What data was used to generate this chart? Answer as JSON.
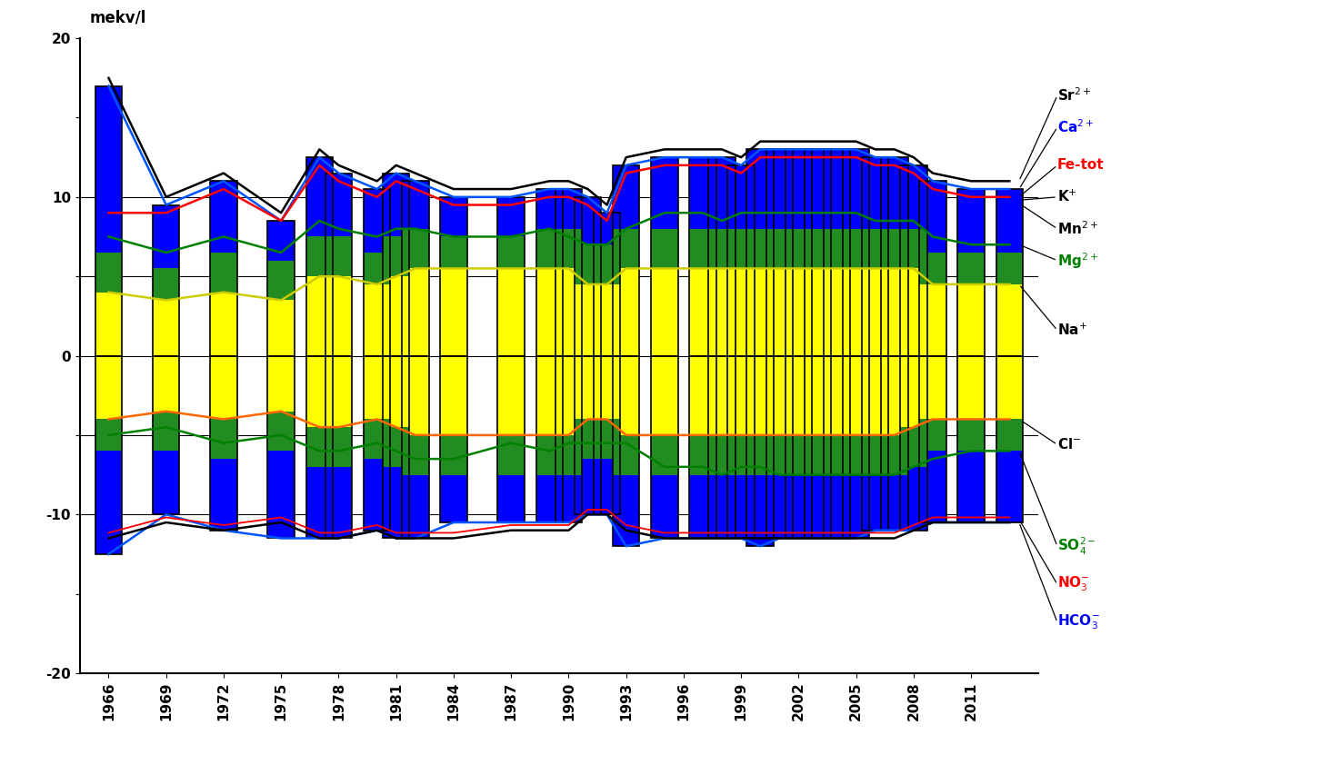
{
  "title_ylabel": "mekv/l",
  "ylim": [
    -20,
    20
  ],
  "xlim": [
    1964.5,
    2014.5
  ],
  "xticks": [
    1966,
    1969,
    1972,
    1975,
    1978,
    1981,
    1984,
    1987,
    1990,
    1993,
    1996,
    1999,
    2002,
    2005,
    2008,
    2011
  ],
  "yticks": [
    -20,
    -15,
    -10,
    -5,
    0,
    5,
    10,
    15,
    20
  ],
  "years": [
    1966,
    1969,
    1972,
    1975,
    1977,
    1978,
    1980,
    1981,
    1982,
    1984,
    1987,
    1989,
    1990,
    1991,
    1992,
    1993,
    1995,
    1997,
    1998,
    1999,
    2000,
    2001,
    2002,
    2003,
    2004,
    2005,
    2006,
    2007,
    2008,
    2009,
    2011,
    2013
  ],
  "Ca2plus": [
    17.0,
    9.5,
    11.0,
    8.5,
    12.5,
    11.5,
    10.5,
    11.5,
    11.0,
    10.0,
    10.0,
    10.5,
    10.5,
    10.0,
    9.0,
    12.0,
    12.5,
    12.5,
    12.5,
    12.0,
    13.0,
    13.0,
    13.0,
    13.0,
    13.0,
    13.0,
    12.5,
    12.5,
    12.0,
    11.0,
    10.5,
    10.5
  ],
  "Mg2plus": [
    2.5,
    2.0,
    2.5,
    2.5,
    2.5,
    2.5,
    2.0,
    2.5,
    2.5,
    2.0,
    2.0,
    2.5,
    2.5,
    2.5,
    2.5,
    2.5,
    2.5,
    2.5,
    2.5,
    2.5,
    2.5,
    2.5,
    2.5,
    2.5,
    2.5,
    2.5,
    2.5,
    2.5,
    2.5,
    2.0,
    2.0,
    2.0
  ],
  "Na_plus": [
    4.0,
    3.5,
    4.0,
    3.5,
    5.0,
    5.0,
    4.5,
    5.0,
    5.5,
    5.5,
    5.5,
    5.5,
    5.5,
    4.5,
    4.5,
    5.5,
    5.5,
    5.5,
    5.5,
    5.5,
    5.5,
    5.5,
    5.5,
    5.5,
    5.5,
    5.5,
    5.5,
    5.5,
    5.5,
    4.5,
    4.5,
    4.5
  ],
  "HCO3_minus": [
    -12.5,
    -10.0,
    -11.0,
    -11.5,
    -11.5,
    -11.5,
    -11.0,
    -11.5,
    -11.5,
    -10.5,
    -10.5,
    -10.5,
    -10.5,
    -10.0,
    -10.0,
    -12.0,
    -11.5,
    -11.5,
    -11.5,
    -11.5,
    -12.0,
    -11.5,
    -11.5,
    -11.5,
    -11.5,
    -11.5,
    -11.0,
    -11.0,
    -11.0,
    -10.5,
    -10.5,
    -10.5
  ],
  "SO4_2minus": [
    -2.0,
    -2.5,
    -2.5,
    -2.5,
    -2.5,
    -2.5,
    -2.5,
    -2.5,
    -2.5,
    -2.5,
    -2.5,
    -2.5,
    -2.5,
    -2.5,
    -2.5,
    -2.5,
    -2.5,
    -2.5,
    -2.5,
    -2.5,
    -2.5,
    -2.5,
    -2.5,
    -2.5,
    -2.5,
    -2.5,
    -2.5,
    -2.5,
    -2.5,
    -2.0,
    -2.0,
    -2.0
  ],
  "Cl_minus": [
    -4.0,
    -3.5,
    -4.0,
    -3.5,
    -4.5,
    -4.5,
    -4.0,
    -4.5,
    -5.0,
    -5.0,
    -5.0,
    -5.0,
    -5.0,
    -4.0,
    -4.0,
    -5.0,
    -5.0,
    -5.0,
    -5.0,
    -5.0,
    -5.0,
    -5.0,
    -5.0,
    -5.0,
    -5.0,
    -5.0,
    -5.0,
    -5.0,
    -4.5,
    -4.0,
    -4.0,
    -4.0
  ],
  "NO3_minus": [
    -0.3,
    -0.3,
    -0.3,
    -0.3,
    -0.3,
    -0.3,
    -0.3,
    -0.3,
    -0.3,
    -0.3,
    -0.3,
    -0.3,
    -0.3,
    -0.3,
    -0.3,
    -0.3,
    -0.3,
    -0.3,
    -0.3,
    -0.3,
    -0.3,
    -0.3,
    -0.3,
    -0.3,
    -0.3,
    -0.3,
    -0.3,
    -0.3,
    -0.3,
    -0.3,
    -0.3,
    -0.3
  ],
  "Sr_total": [
    17.5,
    10.0,
    11.5,
    9.0,
    13.0,
    12.0,
    11.0,
    12.0,
    11.5,
    10.5,
    10.5,
    11.0,
    11.0,
    10.5,
    9.5,
    12.5,
    13.0,
    13.0,
    13.0,
    12.5,
    13.5,
    13.5,
    13.5,
    13.5,
    13.5,
    13.5,
    13.0,
    13.0,
    12.5,
    11.5,
    11.0,
    11.0
  ],
  "Fe_line": [
    9.0,
    9.0,
    10.5,
    8.5,
    12.0,
    11.0,
    10.0,
    11.0,
    10.5,
    9.5,
    9.5,
    10.0,
    10.0,
    9.5,
    8.5,
    11.5,
    12.0,
    12.0,
    12.0,
    11.5,
    12.5,
    12.5,
    12.5,
    12.5,
    12.5,
    12.5,
    12.0,
    12.0,
    11.5,
    10.5,
    10.0,
    10.0
  ],
  "Mg_line": [
    7.5,
    6.5,
    7.5,
    6.5,
    8.5,
    8.0,
    7.5,
    8.0,
    8.0,
    7.5,
    7.5,
    8.0,
    7.5,
    7.0,
    7.0,
    8.0,
    9.0,
    9.0,
    8.5,
    9.0,
    9.0,
    9.0,
    9.0,
    9.0,
    9.0,
    9.0,
    8.5,
    8.5,
    8.5,
    7.5,
    7.0,
    7.0
  ],
  "Na_line": [
    4.0,
    3.5,
    4.0,
    3.5,
    5.0,
    5.0,
    4.5,
    5.0,
    5.5,
    5.5,
    5.5,
    5.5,
    5.5,
    4.5,
    4.5,
    5.5,
    5.5,
    5.5,
    5.5,
    5.5,
    5.5,
    5.5,
    5.5,
    5.5,
    5.5,
    5.5,
    5.5,
    5.5,
    5.5,
    4.5,
    4.5,
    4.5
  ],
  "HCO3_line": [
    -12.5,
    -10.0,
    -11.0,
    -11.5,
    -11.5,
    -11.5,
    -11.0,
    -11.5,
    -11.5,
    -10.5,
    -10.5,
    -10.5,
    -10.5,
    -10.0,
    -10.0,
    -12.0,
    -11.5,
    -11.5,
    -11.5,
    -11.5,
    -12.0,
    -11.5,
    -11.5,
    -11.5,
    -11.5,
    -11.5,
    -11.0,
    -11.0,
    -11.0,
    -10.5,
    -10.5,
    -10.5
  ],
  "SO4_line": [
    -5.0,
    -4.5,
    -5.5,
    -5.0,
    -6.0,
    -6.0,
    -5.5,
    -6.0,
    -6.5,
    -6.5,
    -5.5,
    -6.0,
    -5.5,
    -5.5,
    -5.5,
    -5.5,
    -7.0,
    -7.0,
    -7.5,
    -7.0,
    -7.0,
    -7.5,
    -7.5,
    -7.5,
    -7.5,
    -7.5,
    -7.5,
    -7.5,
    -7.0,
    -6.5,
    -6.0,
    -6.0
  ],
  "Cl_line": [
    -4.0,
    -3.5,
    -4.0,
    -3.5,
    -4.5,
    -4.5,
    -4.0,
    -4.5,
    -5.0,
    -5.0,
    -5.0,
    -5.0,
    -5.0,
    -4.0,
    -4.0,
    -5.0,
    -5.0,
    -5.0,
    -5.0,
    -5.0,
    -5.0,
    -5.0,
    -5.0,
    -5.0,
    -5.0,
    -5.0,
    -5.0,
    -5.0,
    -4.5,
    -4.0,
    -4.0,
    -4.0
  ],
  "total_anions": [
    -11.5,
    -10.5,
    -11.0,
    -10.5,
    -11.5,
    -11.5,
    -11.0,
    -11.5,
    -11.5,
    -11.5,
    -11.0,
    -11.0,
    -11.0,
    -10.0,
    -10.0,
    -11.0,
    -11.5,
    -11.5,
    -11.5,
    -11.5,
    -11.5,
    -11.5,
    -11.5,
    -11.5,
    -11.5,
    -11.5,
    -11.5,
    -11.5,
    -11.0,
    -10.5,
    -10.5,
    -10.5
  ]
}
